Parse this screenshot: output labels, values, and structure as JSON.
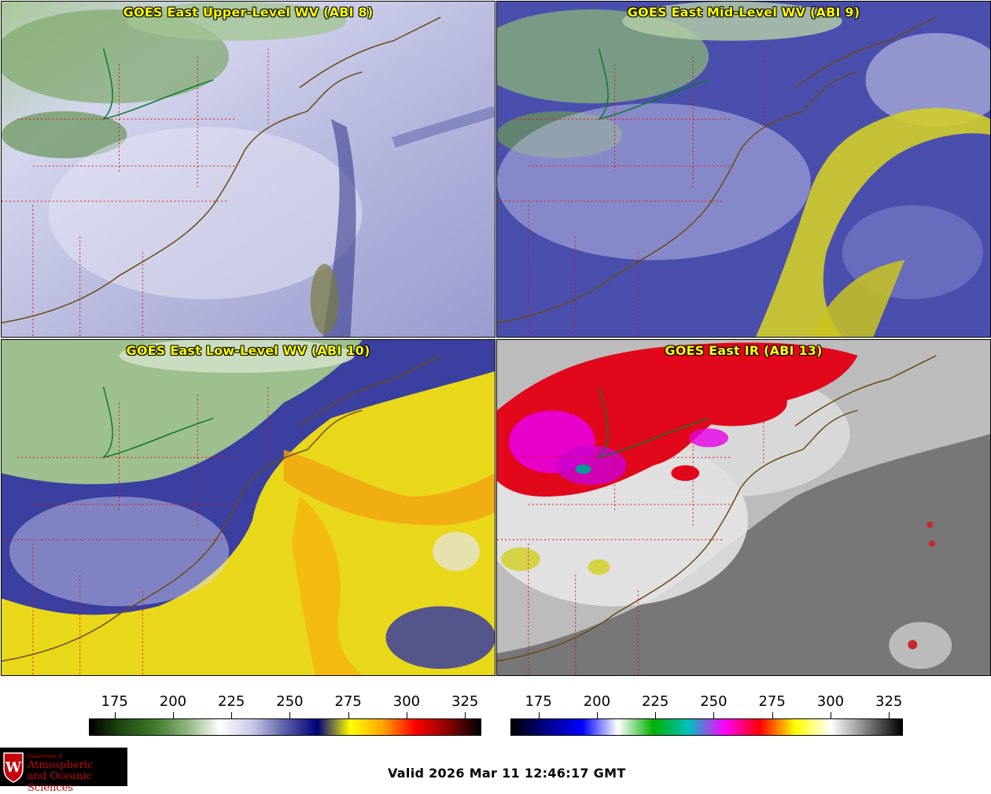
{
  "panels": [
    {
      "title": "GOES East Upper-Level WV (ABI 8)"
    },
    {
      "title": "GOES East Mid-Level WV (ABI 9)"
    },
    {
      "title": "GOES East Low-Level WV (ABI 10)"
    },
    {
      "title": "GOES East IR (ABI 13)"
    }
  ],
  "colorbars": {
    "wv": {
      "ticks": [
        "175",
        "200",
        "225",
        "250",
        "275",
        "300",
        "325"
      ],
      "range": [
        164,
        332
      ],
      "colors": [
        "#000000",
        "#1f4a13",
        "#3f7a2a",
        "#8fb67d",
        "#ffffff",
        "#c7c8e6",
        "#5a5ea8",
        "#00007a",
        "#ffff00",
        "#ffa500",
        "#ff0000",
        "#8b0000",
        "#000000"
      ]
    },
    "ir": {
      "ticks": [
        "175",
        "200",
        "225",
        "250",
        "275",
        "300",
        "325"
      ],
      "range": [
        163,
        331
      ],
      "colors": [
        "#000000",
        "#00008b",
        "#0000ff",
        "#ffffff",
        "#00b000",
        "#00c0c0",
        "#ff00ff",
        "#ff0000",
        "#ffff00",
        "#ffffff",
        "#808080",
        "#000000"
      ]
    }
  },
  "logo": {
    "dept": "Department of",
    "line1": "Atmospheric",
    "line2": "and Oceanic Sciences"
  },
  "valid_text": "Valid 2026 Mar 11 12:46:17 GMT"
}
